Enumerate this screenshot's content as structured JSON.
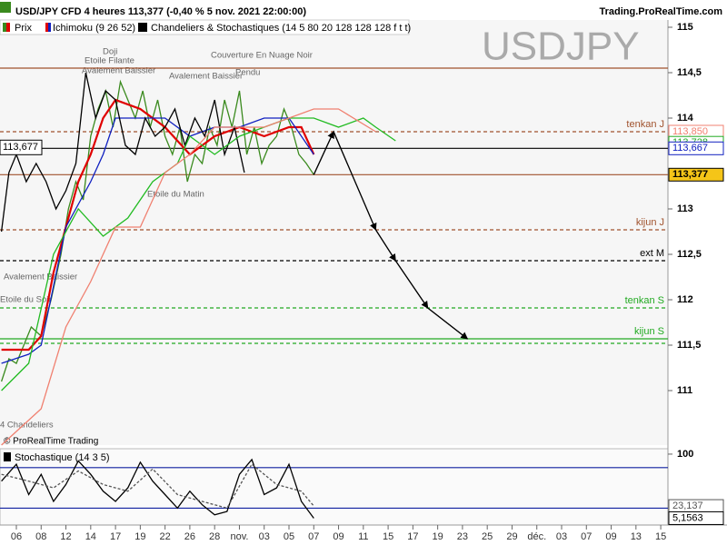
{
  "header": {
    "title": "USD/JPY CFD 4 heures 113,377 (-0,40 % 5 nov. 2021 22:00:00)",
    "site": "Trading.ProRealTime.com",
    "legend": [
      "Prix",
      "Ichimoku (9 26 52)",
      "Chandeliers & Stochastiques (14 5 80 20 128 128 128 f t t)"
    ],
    "watermark": "USDJPY",
    "copyright": "© ProRealTime Trading"
  },
  "chart_data": [
    {
      "type": "line",
      "ylim": [
        110.4,
        115.08
      ],
      "xlim": [
        -0.66,
        26.29
      ],
      "yticks": [
        111,
        {
          "value": 111.5,
          "label": "111,5"
        },
        112,
        {
          "value": 112.5,
          "label": "112,5"
        },
        113,
        114,
        {
          "value": 114.5,
          "label": "114,5"
        },
        115
      ],
      "xticks": [
        {
          "value": 0,
          "label": "06"
        },
        {
          "value": 1,
          "label": "08"
        },
        {
          "value": 2,
          "label": "12"
        },
        {
          "value": 3,
          "label": "14"
        },
        {
          "value": 4,
          "label": "17"
        },
        {
          "value": 5,
          "label": "19"
        },
        {
          "value": 6,
          "label": "22"
        },
        {
          "value": 7,
          "label": "26"
        },
        {
          "value": 8,
          "label": "28"
        },
        {
          "value": 9,
          "label": "nov."
        },
        {
          "value": 10,
          "label": "03"
        },
        {
          "value": 11,
          "label": "05"
        },
        {
          "value": 12,
          "label": "07"
        },
        {
          "value": 13,
          "label": "09"
        },
        {
          "value": 14,
          "label": "11"
        },
        {
          "value": 15,
          "label": "15"
        },
        {
          "value": 16,
          "label": "17"
        },
        {
          "value": 17,
          "label": "19"
        },
        {
          "value": 18,
          "label": "23"
        },
        {
          "value": 19,
          "label": "25"
        },
        {
          "value": 20,
          "label": "29"
        },
        {
          "value": 21,
          "label": "déc."
        },
        {
          "value": 22,
          "label": "03"
        },
        {
          "value": 23,
          "label": "07"
        },
        {
          "value": 24,
          "label": "09"
        },
        {
          "value": 25,
          "label": "13"
        },
        {
          "value": 26,
          "label": "15"
        }
      ],
      "series": [
        {
          "color": "#3a8a1e",
          "x": [
            -0.6,
            -0.3,
            0,
            0.3,
            0.6,
            1,
            1.4,
            1.8,
            2.1,
            2.4,
            2.7,
            3,
            3.3,
            3.6,
            3.9,
            4.2,
            4.5,
            4.8,
            5.1,
            5.4,
            5.7,
            6,
            6.3,
            6.6,
            6.9,
            7.2,
            7.5,
            7.8,
            8.1,
            8.4,
            8.7,
            9,
            9.3,
            9.6,
            9.9,
            10.2,
            10.5,
            10.8,
            11.1,
            11.4,
            11.7,
            12
          ],
          "values": [
            111.1,
            111.35,
            111.3,
            111.5,
            111.7,
            111.6,
            112.0,
            112.5,
            113.0,
            113.3,
            113.1,
            113.8,
            114.1,
            114.3,
            113.9,
            114.4,
            114.2,
            114.0,
            114.3,
            113.9,
            114.2,
            113.8,
            113.6,
            113.9,
            113.3,
            113.6,
            113.5,
            113.9,
            113.7,
            114.2,
            113.9,
            114.3,
            113.6,
            113.9,
            113.5,
            113.7,
            113.8,
            114.1,
            113.9,
            113.6,
            113.5,
            113.377
          ]
        },
        {
          "color": "#e00000",
          "x": [
            -0.6,
            0.5,
            1,
            1.5,
            2,
            2.5,
            3,
            3.5,
            4,
            5,
            6,
            7,
            8,
            9,
            10,
            11,
            11.5,
            12
          ],
          "values": [
            111.45,
            111.45,
            111.6,
            112.3,
            112.8,
            113.3,
            113.6,
            114.0,
            114.2,
            114.1,
            113.9,
            113.6,
            113.8,
            113.9,
            113.8,
            113.9,
            113.9,
            113.6
          ]
        },
        {
          "color": "#1020c0",
          "x": [
            -0.6,
            0.5,
            1,
            2,
            3,
            3.5,
            4,
            5,
            6,
            7,
            8,
            9,
            10,
            11,
            12
          ],
          "values": [
            111.3,
            111.4,
            111.5,
            112.8,
            113.3,
            113.6,
            114.0,
            114.0,
            114.0,
            113.8,
            113.9,
            113.9,
            114.0,
            114.0,
            113.6
          ]
        },
        {
          "color": "#000000",
          "x": [
            -0.6,
            -0.3,
            0,
            0.4,
            0.8,
            1.2,
            1.6,
            2,
            2.4,
            2.8,
            3.2,
            3.6,
            4,
            4.4,
            4.8,
            5.2,
            5.6,
            6,
            6.4,
            6.8,
            7.2,
            7.6,
            8,
            8.4,
            8.8,
            9.2
          ],
          "values": [
            112.75,
            113.4,
            113.6,
            113.3,
            113.5,
            113.3,
            113.0,
            113.2,
            113.5,
            114.5,
            114.0,
            114.3,
            114.2,
            113.7,
            113.6,
            114.0,
            113.8,
            113.9,
            114.1,
            113.7,
            114.0,
            113.8,
            114.2,
            113.6,
            113.9,
            113.4
          ]
        },
        {
          "color": "#22bb22",
          "x": [
            -0.6,
            0.5,
            1.5,
            2.5,
            3.5,
            4.5,
            5.5,
            6.5,
            7,
            8,
            9,
            10,
            11,
            12,
            13,
            14,
            14.5,
            15.3
          ],
          "values": [
            111.0,
            111.3,
            112.5,
            113.0,
            112.7,
            112.9,
            113.3,
            113.5,
            113.8,
            113.6,
            113.8,
            113.9,
            114.0,
            114.0,
            113.9,
            114.0,
            113.9,
            113.75
          ]
        },
        {
          "color": "#f08070",
          "x": [
            -0.6,
            1,
            2,
            3,
            4,
            5,
            6,
            7,
            8,
            9,
            10,
            11,
            12,
            13,
            14.5
          ],
          "values": [
            110.4,
            110.8,
            111.7,
            112.2,
            112.8,
            112.8,
            113.4,
            113.6,
            113.9,
            113.9,
            113.9,
            114.0,
            114.1,
            114.1,
            113.85
          ]
        },
        {
          "color": "#000000",
          "arrows": true,
          "x": [
            12,
            12.8,
            14.5,
            15.3,
            16.6,
            18.2
          ],
          "values": [
            113.377,
            113.85,
            112.77,
            112.43,
            111.91,
            111.57
          ]
        }
      ],
      "levels": [
        {
          "value": 114.55,
          "color": "#a0522d"
        },
        {
          "value": 113.85,
          "color": "#a0522d",
          "dash": true,
          "label": "tenkan J"
        },
        {
          "value": 113.667,
          "color": "#000000"
        },
        {
          "value": 113.377,
          "color": "#a0522d"
        },
        {
          "value": 112.77,
          "color": "#a0522d",
          "dash": true,
          "label": "kijun J"
        },
        {
          "value": 112.43,
          "color": "#000000",
          "dash": true,
          "label": "ext M"
        },
        {
          "value": 111.91,
          "color": "#22aa22",
          "dash": true,
          "label": "tenkan S"
        },
        {
          "value": 111.57,
          "color": "#22aa22",
          "label": "kijun S"
        },
        {
          "value": 111.52,
          "color": "#22aa22",
          "dash": true
        }
      ],
      "price_labels": [
        {
          "value": 113.85,
          "label": "113,850",
          "color": "#f08070"
        },
        {
          "value": 113.728,
          "label": "113,728",
          "color": "#22aa22"
        },
        {
          "value": 113.667,
          "label": "113,667",
          "color": "#1020c0"
        },
        {
          "value": 113.377,
          "label": "113,377",
          "color": "#000000",
          "highlight": true
        }
      ],
      "cursor_label": {
        "value": 113.677,
        "label": "113,677"
      },
      "annotations": [
        "Avalement Baissier",
        "Etoile Filante",
        "Doji",
        "Couverture En Nuage Noir",
        "Avalement Baissier",
        "Pendu",
        "Etoile du Matin",
        "Avalement Baissier",
        "Etoile du Soir",
        "4 Chandeliers"
      ]
    },
    {
      "type": "line",
      "title": "Stochastique (14 3 5)",
      "ylim": [
        -5,
        108
      ],
      "yticks": [
        100
      ],
      "series": [
        {
          "color": "#000000",
          "x": [
            -0.6,
            0,
            0.5,
            1,
            1.5,
            2,
            2.5,
            3,
            3.5,
            4,
            4.5,
            5,
            5.5,
            6,
            6.5,
            7,
            7.5,
            8,
            8.5,
            9,
            9.5,
            10,
            10.5,
            11,
            11.5,
            12
          ],
          "values": [
            60,
            85,
            40,
            70,
            30,
            55,
            90,
            70,
            45,
            30,
            50,
            88,
            60,
            40,
            20,
            45,
            25,
            10,
            15,
            70,
            92,
            40,
            50,
            85,
            30,
            5.1563
          ]
        },
        {
          "color": "#555555",
          "dash": true,
          "x": [
            -0.6,
            0.5,
            1.5,
            2.5,
            3.5,
            4.5,
            5.5,
            6.5,
            7.5,
            8.5,
            9.5,
            10.5,
            11.5,
            12
          ],
          "values": [
            70,
            60,
            50,
            75,
            55,
            45,
            78,
            40,
            30,
            20,
            85,
            55,
            45,
            23.137
          ]
        }
      ],
      "levels": [
        {
          "value": 80,
          "color": "#1020a0"
        },
        {
          "value": 20,
          "color": "#1020a0"
        }
      ],
      "price_labels": [
        {
          "value": 23.137,
          "label": "23,137",
          "color": "#555555"
        },
        {
          "value": 5.1563,
          "label": "5,1563",
          "color": "#000000"
        }
      ]
    }
  ]
}
